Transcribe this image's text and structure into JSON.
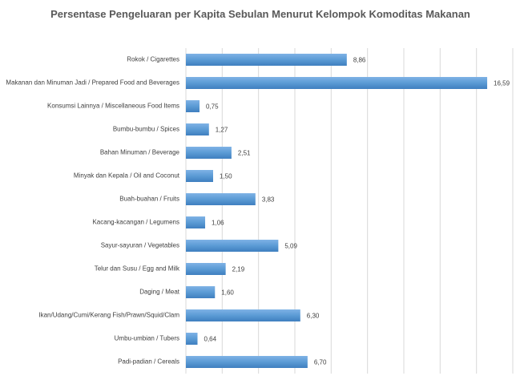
{
  "chart_data": {
    "type": "bar",
    "orientation": "horizontal",
    "title": "Persentase Pengeluaran per Kapita Sebulan Menurut Kelompok Komoditas Makanan",
    "categories": [
      "Rokok / Cigarettes",
      "Makanan dan Minuman Jadi / Prepared Food and Beverages",
      "Konsumsi Lainnya / Miscellaneous Food Items",
      "Bumbu-bumbu / Spices",
      "Bahan Minuman / Beverage",
      "Minyak dan Kepala / Oil and Coconut",
      "Buah-buahan / Fruits",
      "Kacang-kacangan / Legumens",
      "Sayur-sayuran / Vegetables",
      "Telur dan Susu / Egg and Milk",
      "Daging / Meat",
      "Ikan/Udang/Cumi/Kerang Fish/Prawn/Squid/Clam",
      "Umbu-umbian / Tubers",
      "Padi-padian / Cereals"
    ],
    "values": [
      8.86,
      16.59,
      0.75,
      1.27,
      2.51,
      1.5,
      3.83,
      1.06,
      5.09,
      2.19,
      1.6,
      6.3,
      0.64,
      6.7
    ],
    "value_labels": [
      "8,86",
      "16,59",
      "0,75",
      "1,27",
      "2,51",
      "1,50",
      "3,83",
      "1,06",
      "5,09",
      "2,19",
      "1,60",
      "6,30",
      "0,64",
      "6,70"
    ],
    "color": "#5b9bd5",
    "xlim": [
      0,
      18
    ],
    "xticks": [
      0,
      2,
      4,
      6,
      8,
      10,
      12,
      14,
      16,
      18
    ],
    "grid": true
  }
}
